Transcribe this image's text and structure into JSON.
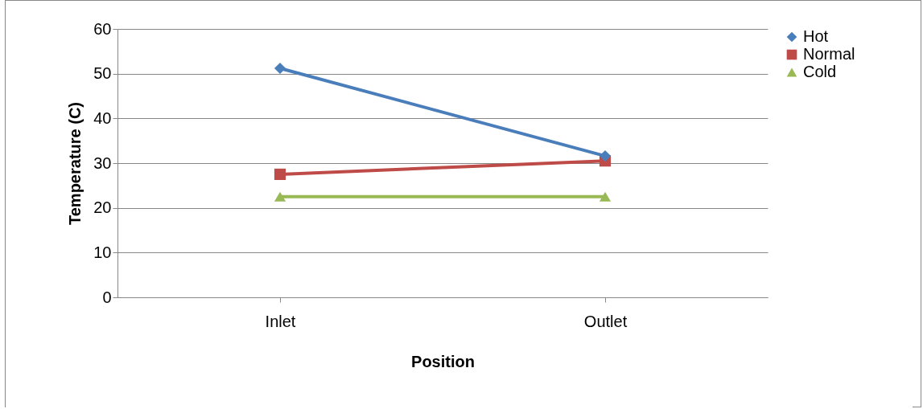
{
  "chart_data": {
    "type": "line",
    "xlabel": "Position",
    "ylabel": "Temperature (C)",
    "categories": [
      "Inlet",
      "Outlet"
    ],
    "series": [
      {
        "name": "Hot",
        "color": "#4a7ebb",
        "marker": "diamond",
        "values": [
          51.2,
          31.6
        ]
      },
      {
        "name": "Normal",
        "color": "#be4b48",
        "marker": "square",
        "values": [
          27.5,
          30.5
        ]
      },
      {
        "name": "Cold",
        "color": "#98b954",
        "marker": "triangle",
        "values": [
          22.5,
          22.5
        ]
      }
    ],
    "ylim": [
      0,
      60
    ],
    "yticks": [
      0,
      10,
      20,
      30,
      40,
      50,
      60
    ],
    "grid": "y",
    "legend": "right"
  }
}
